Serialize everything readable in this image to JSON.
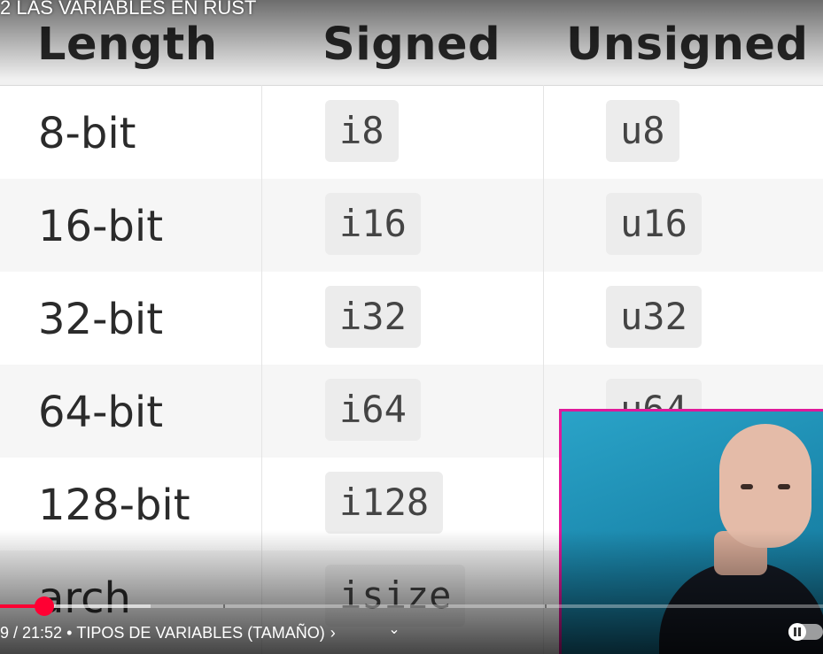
{
  "video": {
    "title": "2 LAS VARIABLES EN RUST"
  },
  "table": {
    "headers": [
      "Length",
      "Signed",
      "Unsigned"
    ],
    "rows": [
      {
        "length": "8-bit",
        "signed": "i8",
        "unsigned": "u8"
      },
      {
        "length": "16-bit",
        "signed": "i16",
        "unsigned": "u16"
      },
      {
        "length": "32-bit",
        "signed": "i32",
        "unsigned": "u32"
      },
      {
        "length": "64-bit",
        "signed": "i64",
        "unsigned": "u64"
      },
      {
        "length": "128-bit",
        "signed": "i128",
        "unsigned": ""
      },
      {
        "length": "arch",
        "signed": "isize",
        "unsigned": ""
      }
    ]
  },
  "controls": {
    "time": "9 / 21:52",
    "separator": "•",
    "chapter": "TIPOS DE VARIABLES (TAMAÑO)",
    "chapter_chevron": "›",
    "expand_icon": "⌄",
    "progress_played_fraction": 0.054,
    "progress_buffered_fraction": 0.183,
    "accent_color": "#ff0033"
  },
  "webcam": {
    "border_color": "#e0199a"
  }
}
